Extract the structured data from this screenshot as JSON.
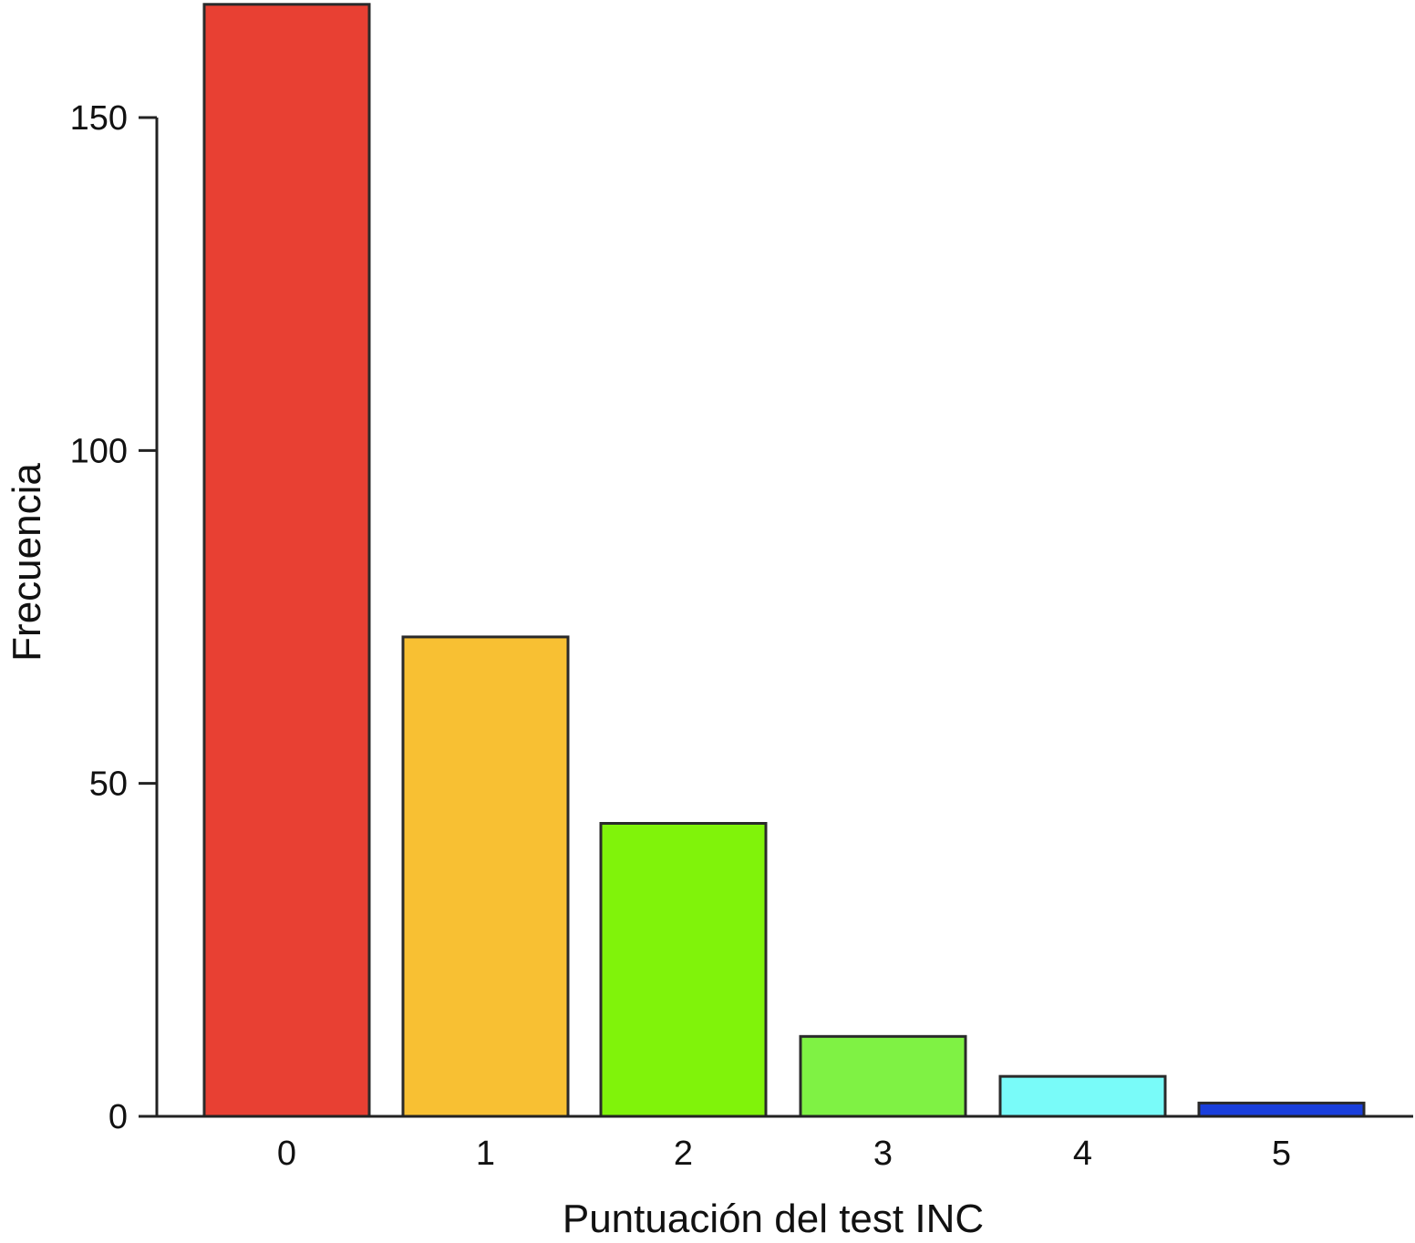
{
  "chart_data": {
    "type": "bar",
    "categories": [
      "0",
      "1",
      "2",
      "3",
      "4",
      "5"
    ],
    "values": [
      167,
      72,
      44,
      12,
      6,
      2
    ],
    "colors": [
      "#e84033",
      "#f8c033",
      "#80f30a",
      "#7ff244",
      "#79fbf9",
      "#1a3fdc"
    ],
    "xlabel": "Puntuación del test INC",
    "ylabel": "Frecuencia",
    "ylim": [
      0,
      150
    ],
    "yticks": [
      0,
      50,
      100,
      150
    ],
    "grid": false
  }
}
